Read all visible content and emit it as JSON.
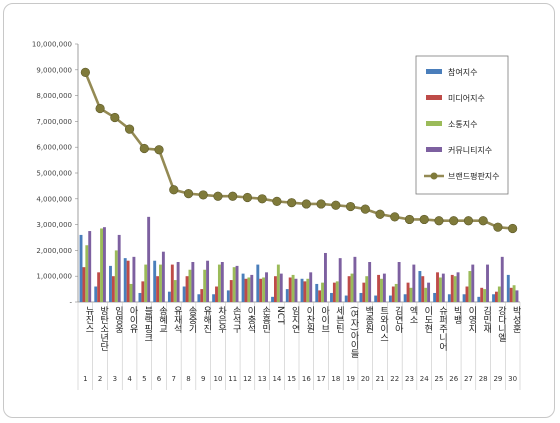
{
  "chart_data": {
    "type": "bar",
    "categories": [
      "뉴진스",
      "방탄소년단",
      "임영웅",
      "아이유",
      "블랙핑크",
      "송혜교",
      "유재석",
      "송중기",
      "유해진",
      "차은우",
      "손석구",
      "이충석",
      "손흥민",
      "NCT",
      "임지연",
      "이찬원",
      "아이브",
      "세븐틴",
      "(여자)아이들",
      "백종원",
      "트와이스",
      "김연아",
      "엑소",
      "이도현",
      "슈퍼주니어",
      "빅뱅",
      "이영지",
      "김민재",
      "강다니엘",
      "박성훈"
    ],
    "ranks": [
      "1",
      "2",
      "3",
      "4",
      "5",
      "6",
      "7",
      "8",
      "9",
      "10",
      "11",
      "12",
      "13",
      "14",
      "15",
      "16",
      "17",
      "18",
      "19",
      "20",
      "21",
      "22",
      "23",
      "24",
      "25",
      "26",
      "27",
      "28",
      "29",
      "30"
    ],
    "series": [
      {
        "name": "참여지수",
        "color": "#4a7ebb",
        "values": [
          2600000,
          600000,
          1400000,
          1700000,
          350000,
          1600000,
          400000,
          600000,
          300000,
          300000,
          450000,
          1100000,
          1450000,
          200000,
          500000,
          900000,
          700000,
          350000,
          250000,
          350000,
          250000,
          250000,
          300000,
          1200000,
          350000,
          300000,
          300000,
          200000,
          300000,
          1050000
        ]
      },
      {
        "name": "미디어지수",
        "color": "#be4b48",
        "values": [
          1350000,
          1150000,
          1000000,
          1600000,
          800000,
          1000000,
          1450000,
          1000000,
          500000,
          600000,
          850000,
          900000,
          900000,
          1000000,
          950000,
          800000,
          450000,
          750000,
          1000000,
          750000,
          1050000,
          600000,
          750000,
          1000000,
          1150000,
          1050000,
          600000,
          550000,
          400000,
          550000
        ]
      },
      {
        "name": "소통지수",
        "color": "#9bbb59",
        "values": [
          2200000,
          2850000,
          2000000,
          700000,
          1450000,
          1450000,
          850000,
          1250000,
          1250000,
          1450000,
          1350000,
          950000,
          950000,
          1450000,
          1050000,
          900000,
          750000,
          800000,
          1100000,
          1000000,
          900000,
          700000,
          550000,
          550000,
          950000,
          1000000,
          1200000,
          500000,
          600000,
          650000
        ]
      },
      {
        "name": "커뮤니티지수",
        "color": "#7d60a0",
        "values": [
          2750000,
          2900000,
          2600000,
          1750000,
          3300000,
          1950000,
          1550000,
          1550000,
          1600000,
          1550000,
          1400000,
          1050000,
          1150000,
          1100000,
          900000,
          1150000,
          1900000,
          1700000,
          1750000,
          1550000,
          1100000,
          1550000,
          1450000,
          750000,
          1100000,
          1150000,
          1450000,
          1450000,
          1750000,
          450000
        ]
      }
    ],
    "line": {
      "name": "브랜드평판지수",
      "color": "#948a54",
      "marker_color": "#7f7a3a",
      "values": [
        8900000,
        7500000,
        7150000,
        6700000,
        5950000,
        5900000,
        4350000,
        4200000,
        4150000,
        4100000,
        4100000,
        4050000,
        4000000,
        3900000,
        3850000,
        3800000,
        3800000,
        3750000,
        3700000,
        3600000,
        3400000,
        3300000,
        3200000,
        3200000,
        3150000,
        3150000,
        3150000,
        3150000,
        2900000,
        2850000
      ]
    },
    "ylim": [
      0,
      10000000
    ],
    "yticks": [
      "10,000,000",
      "9,000,000",
      "8,000,000",
      "7,000,000",
      "6,000,000",
      "5,000,000",
      "4,000,000",
      "3,000,000",
      "2,000,000",
      "1,000,000",
      "-"
    ],
    "legend_position": "right"
  }
}
